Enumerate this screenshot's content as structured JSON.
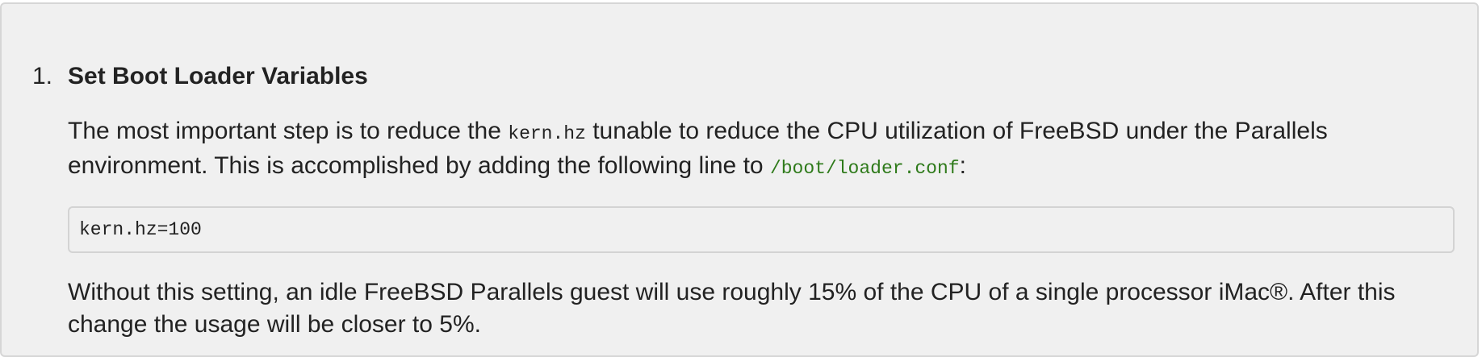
{
  "step": {
    "number": "1.",
    "title": "Set Boot Loader Variables",
    "para1": {
      "before": "The most important step is to reduce the ",
      "code": "kern.hz",
      "middle": " tunable to reduce the CPU utilization of FreeBSD under the Parallels environment. This is accomplished by adding the following line to ",
      "filename": "/boot/loader.conf",
      "after": ":"
    },
    "code_block": "kern.hz=100",
    "para2": "Without this setting, an idle FreeBSD Parallels guest will use roughly 15% of the CPU of a single processor iMac®. After this change the usage will be closer to 5%."
  },
  "colors": {
    "panel_background": "#f0f0f0",
    "filename": "#2e7a1a",
    "text": "#222222"
  }
}
